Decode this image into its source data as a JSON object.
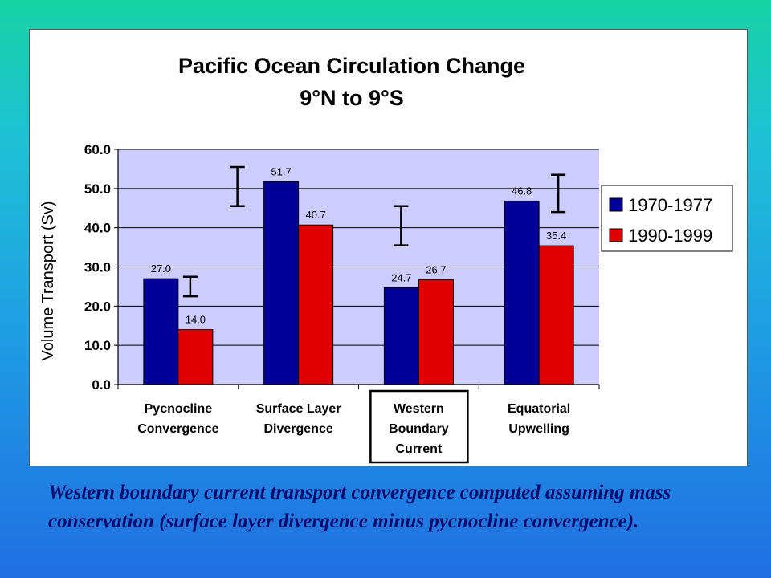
{
  "caption": "Western boundary current transport convergence computed assuming mass conservation (surface layer divergence minus pycnocline convergence).",
  "colors": {
    "series_1970": "#000099",
    "series_1990": "#e00000",
    "plot_background": "#ccccff",
    "panel_background": "#ffffff"
  },
  "chart_data": {
    "type": "bar",
    "title": "Pacific Ocean Circulation Change",
    "subtitle": "9°N to 9°S",
    "ylabel": "Volume Transport (Sv)",
    "xlabel": "",
    "ylim": [
      0,
      60
    ],
    "yticks": [
      "0.0",
      "10.0",
      "20.0",
      "30.0",
      "40.0",
      "50.0",
      "60.0"
    ],
    "categories": [
      [
        "Pycnocline",
        "Convergence"
      ],
      [
        "Surface Layer",
        "Divergence"
      ],
      [
        "Western",
        "Boundary",
        "Current"
      ],
      [
        "Equatorial",
        "Upwelling"
      ]
    ],
    "highlighted_category": 2,
    "series": [
      {
        "name": "1970-1977",
        "values": [
          27.0,
          51.7,
          24.7,
          46.8
        ],
        "labels": [
          "27.0",
          "51.7",
          "24.7",
          "46.8"
        ]
      },
      {
        "name": "1990-1999",
        "values": [
          14.0,
          40.7,
          26.7,
          35.4
        ],
        "labels": [
          "14.0",
          "40.7",
          "26.7",
          "35.4"
        ]
      }
    ],
    "error_bars": [
      {
        "category": 0,
        "low": 22.5,
        "high": 27.5
      },
      {
        "category": 1,
        "low": 45.5,
        "high": 55.5
      },
      {
        "category": 2,
        "low": 35.5,
        "high": 45.5
      },
      {
        "category": 3,
        "low": 44.0,
        "high": 53.5
      }
    ],
    "grid": true,
    "legend": "right"
  }
}
